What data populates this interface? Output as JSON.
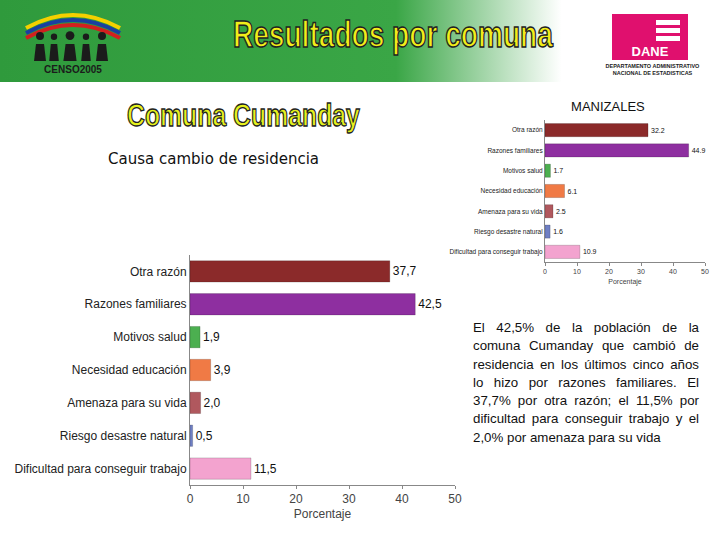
{
  "page": {
    "logo_text": "CENSO2005",
    "header_title": "Resultados por comuna",
    "agency": "DANE",
    "agency_name": [
      "DEPARTAMENTO ADMINISTRATIVO",
      "NACIONAL DE ESTADISTICAS"
    ],
    "comuna": "Comuna Cumanday",
    "subtitle": "Causa cambio de residencia",
    "description": "El 42,5% de la población de la comuna Cumanday que cambió de residencia en los últimos cinco años lo hizo por razones familiares. El 37,7% por otra razón; el 11,5% por dificultad para conseguir trabajo y el 2,0% por amenaza para su vida"
  },
  "chart_data": [
    {
      "type": "bar",
      "orientation": "horizontal",
      "categories": [
        "Otra razón",
        "Razones familiares",
        "Motivos salud",
        "Necesidad educación",
        "Amenaza para su vida",
        "Riesgo desastre natural",
        "Dificultad para conseguir trabajo"
      ],
      "values": [
        37.7,
        42.5,
        1.9,
        3.9,
        2.0,
        0.5,
        11.5
      ],
      "value_labels": [
        "37,7",
        "42,5",
        "1,9",
        "3,9",
        "2,0",
        "0,5",
        "11,5"
      ],
      "colors": [
        "#8b2a2a",
        "#8e2fa0",
        "#4caf50",
        "#f07a45",
        "#b0585e",
        "#6f7fc4",
        "#f3a3cf"
      ],
      "xlabel": "Porcentaje",
      "xlim": [
        0,
        50
      ],
      "xticks": [
        0,
        10,
        20,
        30,
        40,
        50
      ],
      "grid": false,
      "data_labels": true
    },
    {
      "type": "bar",
      "orientation": "horizontal",
      "title": "MANIZALES",
      "categories": [
        "Otra razón",
        "Razones familiares",
        "Motivos salud",
        "Necesidad educación",
        "Amenaza para su vida",
        "Riesgo desastre natural",
        "Dificultad para conseguir trabajo"
      ],
      "values": [
        32.2,
        44.9,
        1.7,
        6.1,
        2.5,
        1.6,
        10.9
      ],
      "colors": [
        "#8b2a2a",
        "#8e2fa0",
        "#4caf50",
        "#f07a45",
        "#b0585e",
        "#6f7fc4",
        "#f3a3cf"
      ],
      "xlabel": "Porcentaje",
      "xlim": [
        0,
        50
      ],
      "xticks": [
        0,
        10,
        20,
        30,
        40,
        50
      ],
      "grid": false,
      "data_labels": true
    }
  ]
}
